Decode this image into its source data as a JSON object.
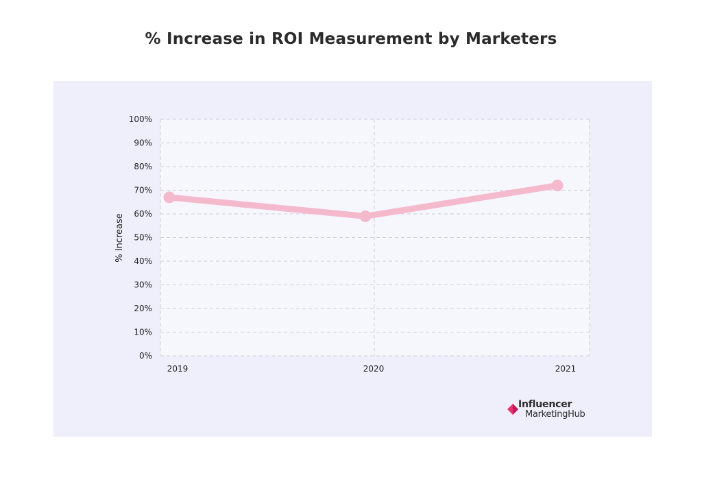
{
  "chart_data": {
    "type": "line",
    "title": "% Increase in ROI Measurement by Marketers",
    "xlabel": "",
    "ylabel": "% Increase",
    "categories": [
      "2019",
      "2020",
      "2021"
    ],
    "series": [
      {
        "values": [
          67,
          59,
          72
        ]
      }
    ],
    "ylim": [
      0,
      100
    ],
    "yticks": [
      "0%",
      "10%",
      "20%",
      "30%",
      "40%",
      "50%",
      "60%",
      "70%",
      "80%",
      "90%",
      "100%"
    ],
    "grid": true,
    "legend": "none",
    "colors": {
      "line": "#f5b9cd",
      "panel": "#efeefb",
      "plot": "#f6f6fd",
      "grid": "#cccccc"
    }
  },
  "logo": {
    "line1": "Influencer",
    "line2": "MarketingHub",
    "colors": {
      "diamond_left": "#e8336d",
      "diamond_right": "#c2185b"
    }
  }
}
